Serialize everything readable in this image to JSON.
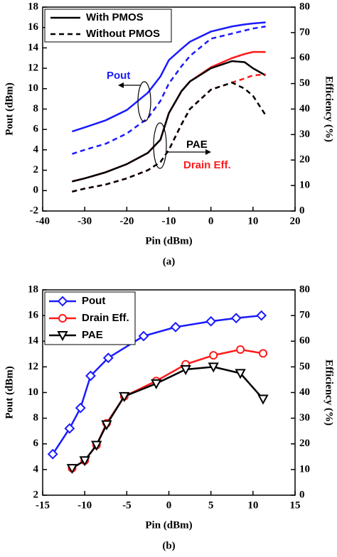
{
  "chart_data": [
    {
      "type": "line",
      "caption": "(a)",
      "xlabel": "Pin (dBm)",
      "ylabel": "Pout (dBm)",
      "y2label": "Efficiency (%)",
      "xlim": [
        -40,
        20
      ],
      "xticks": [
        -40,
        -30,
        -20,
        -10,
        0,
        10,
        20
      ],
      "ylim": [
        -2,
        18
      ],
      "yticks": [
        -2,
        0,
        2,
        4,
        6,
        8,
        10,
        12,
        14,
        16,
        18
      ],
      "y2lim": [
        0,
        80
      ],
      "y2ticks": [
        0,
        10,
        20,
        30,
        40,
        50,
        60,
        70,
        80
      ],
      "grid": false,
      "legend_position": "upper left",
      "legend": [
        {
          "label": "With PMOS",
          "dash": "solid"
        },
        {
          "label": "Without PMOS",
          "dash": "dashed"
        }
      ],
      "annotations": [
        {
          "text": "Pout",
          "color": "#1a1aff"
        },
        {
          "text": "PAE",
          "color": "#000000"
        },
        {
          "text": "Drain Eff.",
          "color": "#ff1a1a"
        }
      ],
      "x": [
        -33,
        -30,
        -25,
        -20,
        -15,
        -12,
        -10,
        -7,
        -5,
        0,
        5,
        8,
        10,
        13
      ],
      "series": [
        {
          "color": "#1a1aff",
          "dash": "solid",
          "values": [
            5.8,
            6.2,
            6.9,
            7.9,
            9.6,
            11.2,
            12.8,
            13.9,
            14.6,
            15.6,
            16.1,
            16.3,
            16.4,
            16.5
          ]
        },
        {
          "color": "#1a1aff",
          "dash": "dashed",
          "values": [
            3.6,
            4.0,
            4.6,
            5.6,
            7.1,
            8.8,
            10.5,
            12.2,
            13.2,
            14.9,
            15.4,
            15.7,
            15.9,
            16.1
          ]
        },
        {
          "color": "#ff1a1a",
          "dash": "solid",
          "axis": "y2",
          "values": [
            11.6,
            12.8,
            15.2,
            18.4,
            22.8,
            28,
            38.4,
            47,
            50.8,
            56.4,
            60,
            61.6,
            62.4,
            62.4
          ]
        },
        {
          "color": "#000000",
          "dash": "solid",
          "axis": "y2",
          "values": [
            11.6,
            12.8,
            15.2,
            18.4,
            22.8,
            28,
            38.4,
            47,
            50.8,
            56,
            58.8,
            58.4,
            56,
            53.2
          ]
        },
        {
          "color": "#ff1a1a",
          "dash": "dashed",
          "axis": "y2",
          "values": [
            7.6,
            8.8,
            10.4,
            12.8,
            16,
            19.2,
            24,
            34,
            40,
            47.6,
            50.4,
            52,
            53.2,
            53.6
          ]
        },
        {
          "color": "#000000",
          "dash": "dashed",
          "axis": "y2",
          "values": [
            7.6,
            8.8,
            10.4,
            12.8,
            16,
            19.2,
            24,
            34,
            40,
            47.6,
            50.4,
            48,
            45.2,
            37.6
          ]
        }
      ]
    },
    {
      "type": "line",
      "caption": "(b)",
      "xlabel": "Pin (dBm)",
      "ylabel": "Pout (dBm)",
      "y2label": "Efficiency (%)",
      "xlim": [
        -15,
        15
      ],
      "xticks": [
        -15,
        -10,
        -5,
        0,
        5,
        10,
        15
      ],
      "ylim": [
        2,
        18
      ],
      "yticks": [
        2,
        4,
        6,
        8,
        10,
        12,
        14,
        16,
        18
      ],
      "y2lim": [
        0,
        80
      ],
      "y2ticks": [
        0,
        10,
        20,
        30,
        40,
        50,
        60,
        70,
        80
      ],
      "grid": false,
      "legend_position": "upper left",
      "series": [
        {
          "name": "Pout",
          "color": "#1a1aff",
          "marker": "diamond",
          "x": [
            -13.8,
            -11.8,
            -10.5,
            -9.3,
            -7.2,
            -3,
            0.8,
            5,
            8,
            11
          ],
          "values": [
            5.2,
            7.2,
            8.8,
            11.3,
            12.7,
            14.4,
            15.1,
            15.55,
            15.8,
            16.0
          ]
        },
        {
          "name": "Drain Eff.",
          "color": "#ff1a1a",
          "marker": "circle",
          "axis": "y2",
          "x": [
            -11.5,
            -10,
            -8.6,
            -7.4,
            -5.3,
            -1.5,
            2,
            5.3,
            8.5,
            11.2
          ],
          "values": [
            10.5,
            13.5,
            19.5,
            28,
            38.5,
            44.5,
            51,
            54.5,
            56.75,
            55.25
          ]
        },
        {
          "name": "PAE",
          "color": "#000000",
          "marker": "triangle-down",
          "axis": "y2",
          "x": [
            -11.5,
            -10,
            -8.6,
            -7.4,
            -5.3,
            -1.5,
            2,
            5.3,
            8.5,
            11.2
          ],
          "values": [
            10.5,
            13.5,
            19.5,
            27.5,
            38.5,
            43.5,
            49,
            50,
            47.5,
            37.5
          ]
        }
      ]
    }
  ]
}
